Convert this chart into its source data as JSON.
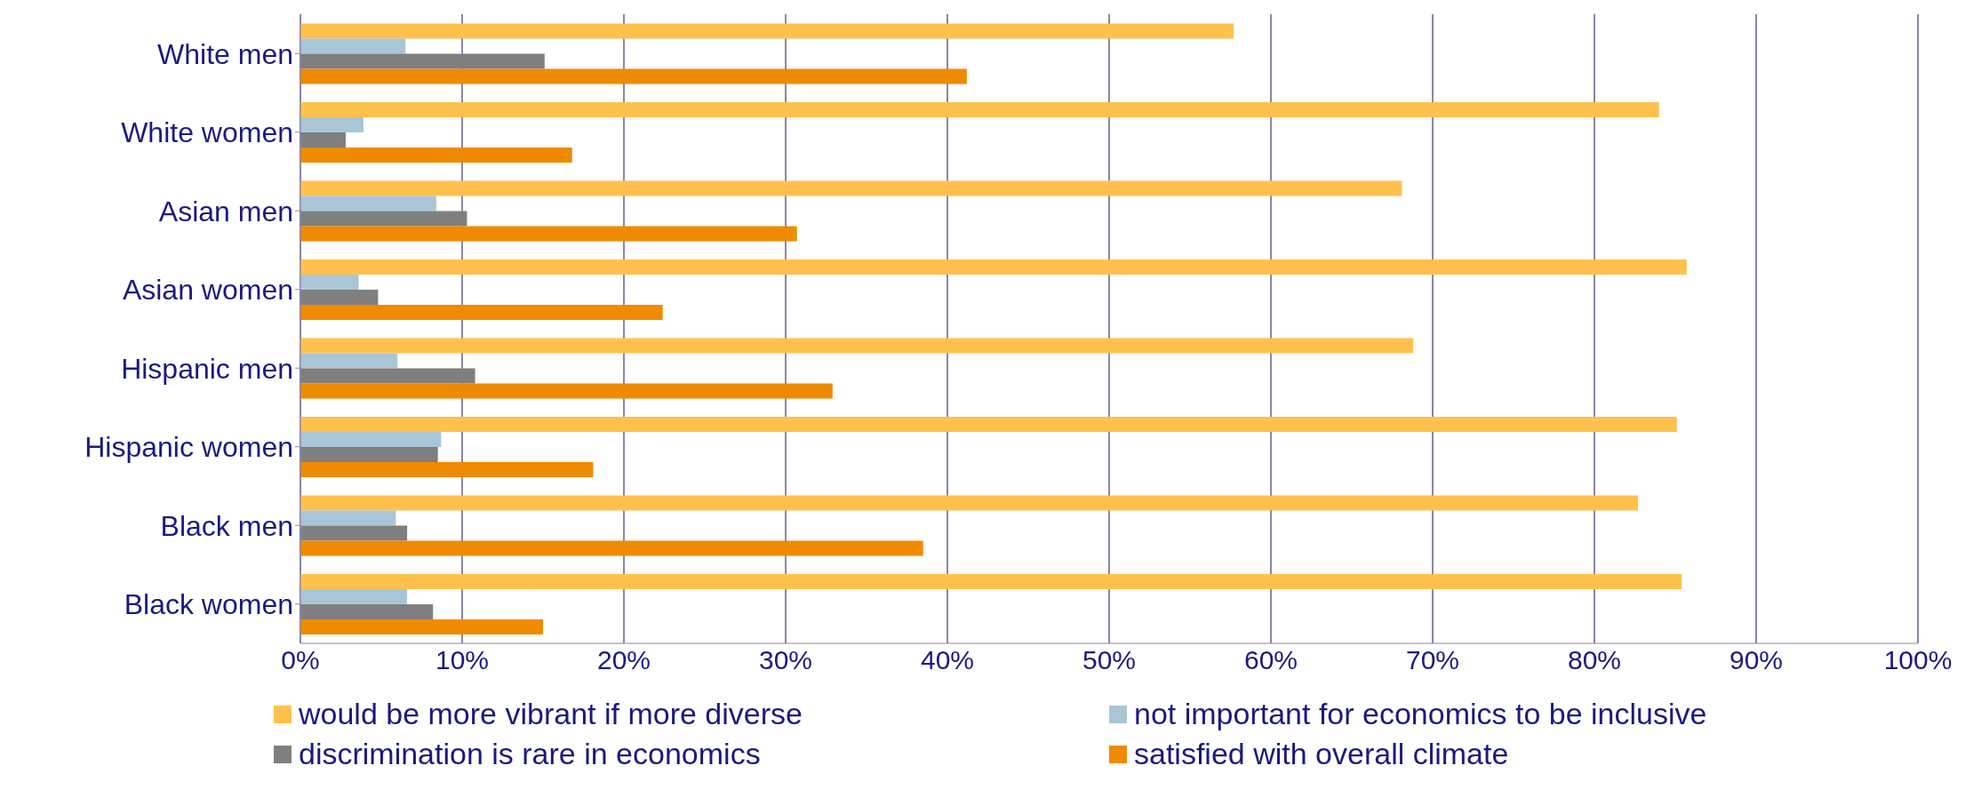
{
  "chart_data": {
    "type": "bar",
    "orientation": "horizontal",
    "categories": [
      "White men",
      "White women",
      "Asian men",
      "Asian women",
      "Hispanic men",
      "Hispanic women",
      "Black men",
      "Black women"
    ],
    "series": [
      {
        "name": "would be more vibrant if more diverse",
        "color": "#ffc04d",
        "values": [
          57.7,
          84.0,
          68.1,
          85.7,
          68.8,
          85.1,
          82.7,
          85.4
        ]
      },
      {
        "name": "not important for economics to be inclusive",
        "color": "#a9c6d6",
        "values": [
          6.5,
          3.9,
          8.4,
          3.6,
          6.0,
          8.7,
          5.9,
          6.6
        ]
      },
      {
        "name": "discrimination is rare in economics",
        "color": "#7f7f7f",
        "values": [
          15.1,
          2.8,
          10.3,
          4.8,
          10.8,
          8.5,
          6.6,
          8.2
        ]
      },
      {
        "name": "satisfied with overall climate",
        "color": "#f08a00",
        "values": [
          41.2,
          16.8,
          30.7,
          22.4,
          32.9,
          18.1,
          38.5,
          15.0
        ]
      }
    ],
    "xlim": [
      0,
      100
    ],
    "xticks": [
      {
        "value": 0,
        "label": "0%"
      },
      {
        "value": 10,
        "label": "10%"
      },
      {
        "value": 20,
        "label": "20%"
      },
      {
        "value": 30,
        "label": "30%"
      },
      {
        "value": 40,
        "label": "40%"
      },
      {
        "value": 50,
        "label": "50%"
      },
      {
        "value": 60,
        "label": "60%"
      },
      {
        "value": 70,
        "label": "70%"
      },
      {
        "value": 80,
        "label": "80%"
      },
      {
        "value": 90,
        "label": "90%"
      },
      {
        "value": 100,
        "label": "100%"
      }
    ],
    "grid": "x",
    "legend": "bottom"
  }
}
